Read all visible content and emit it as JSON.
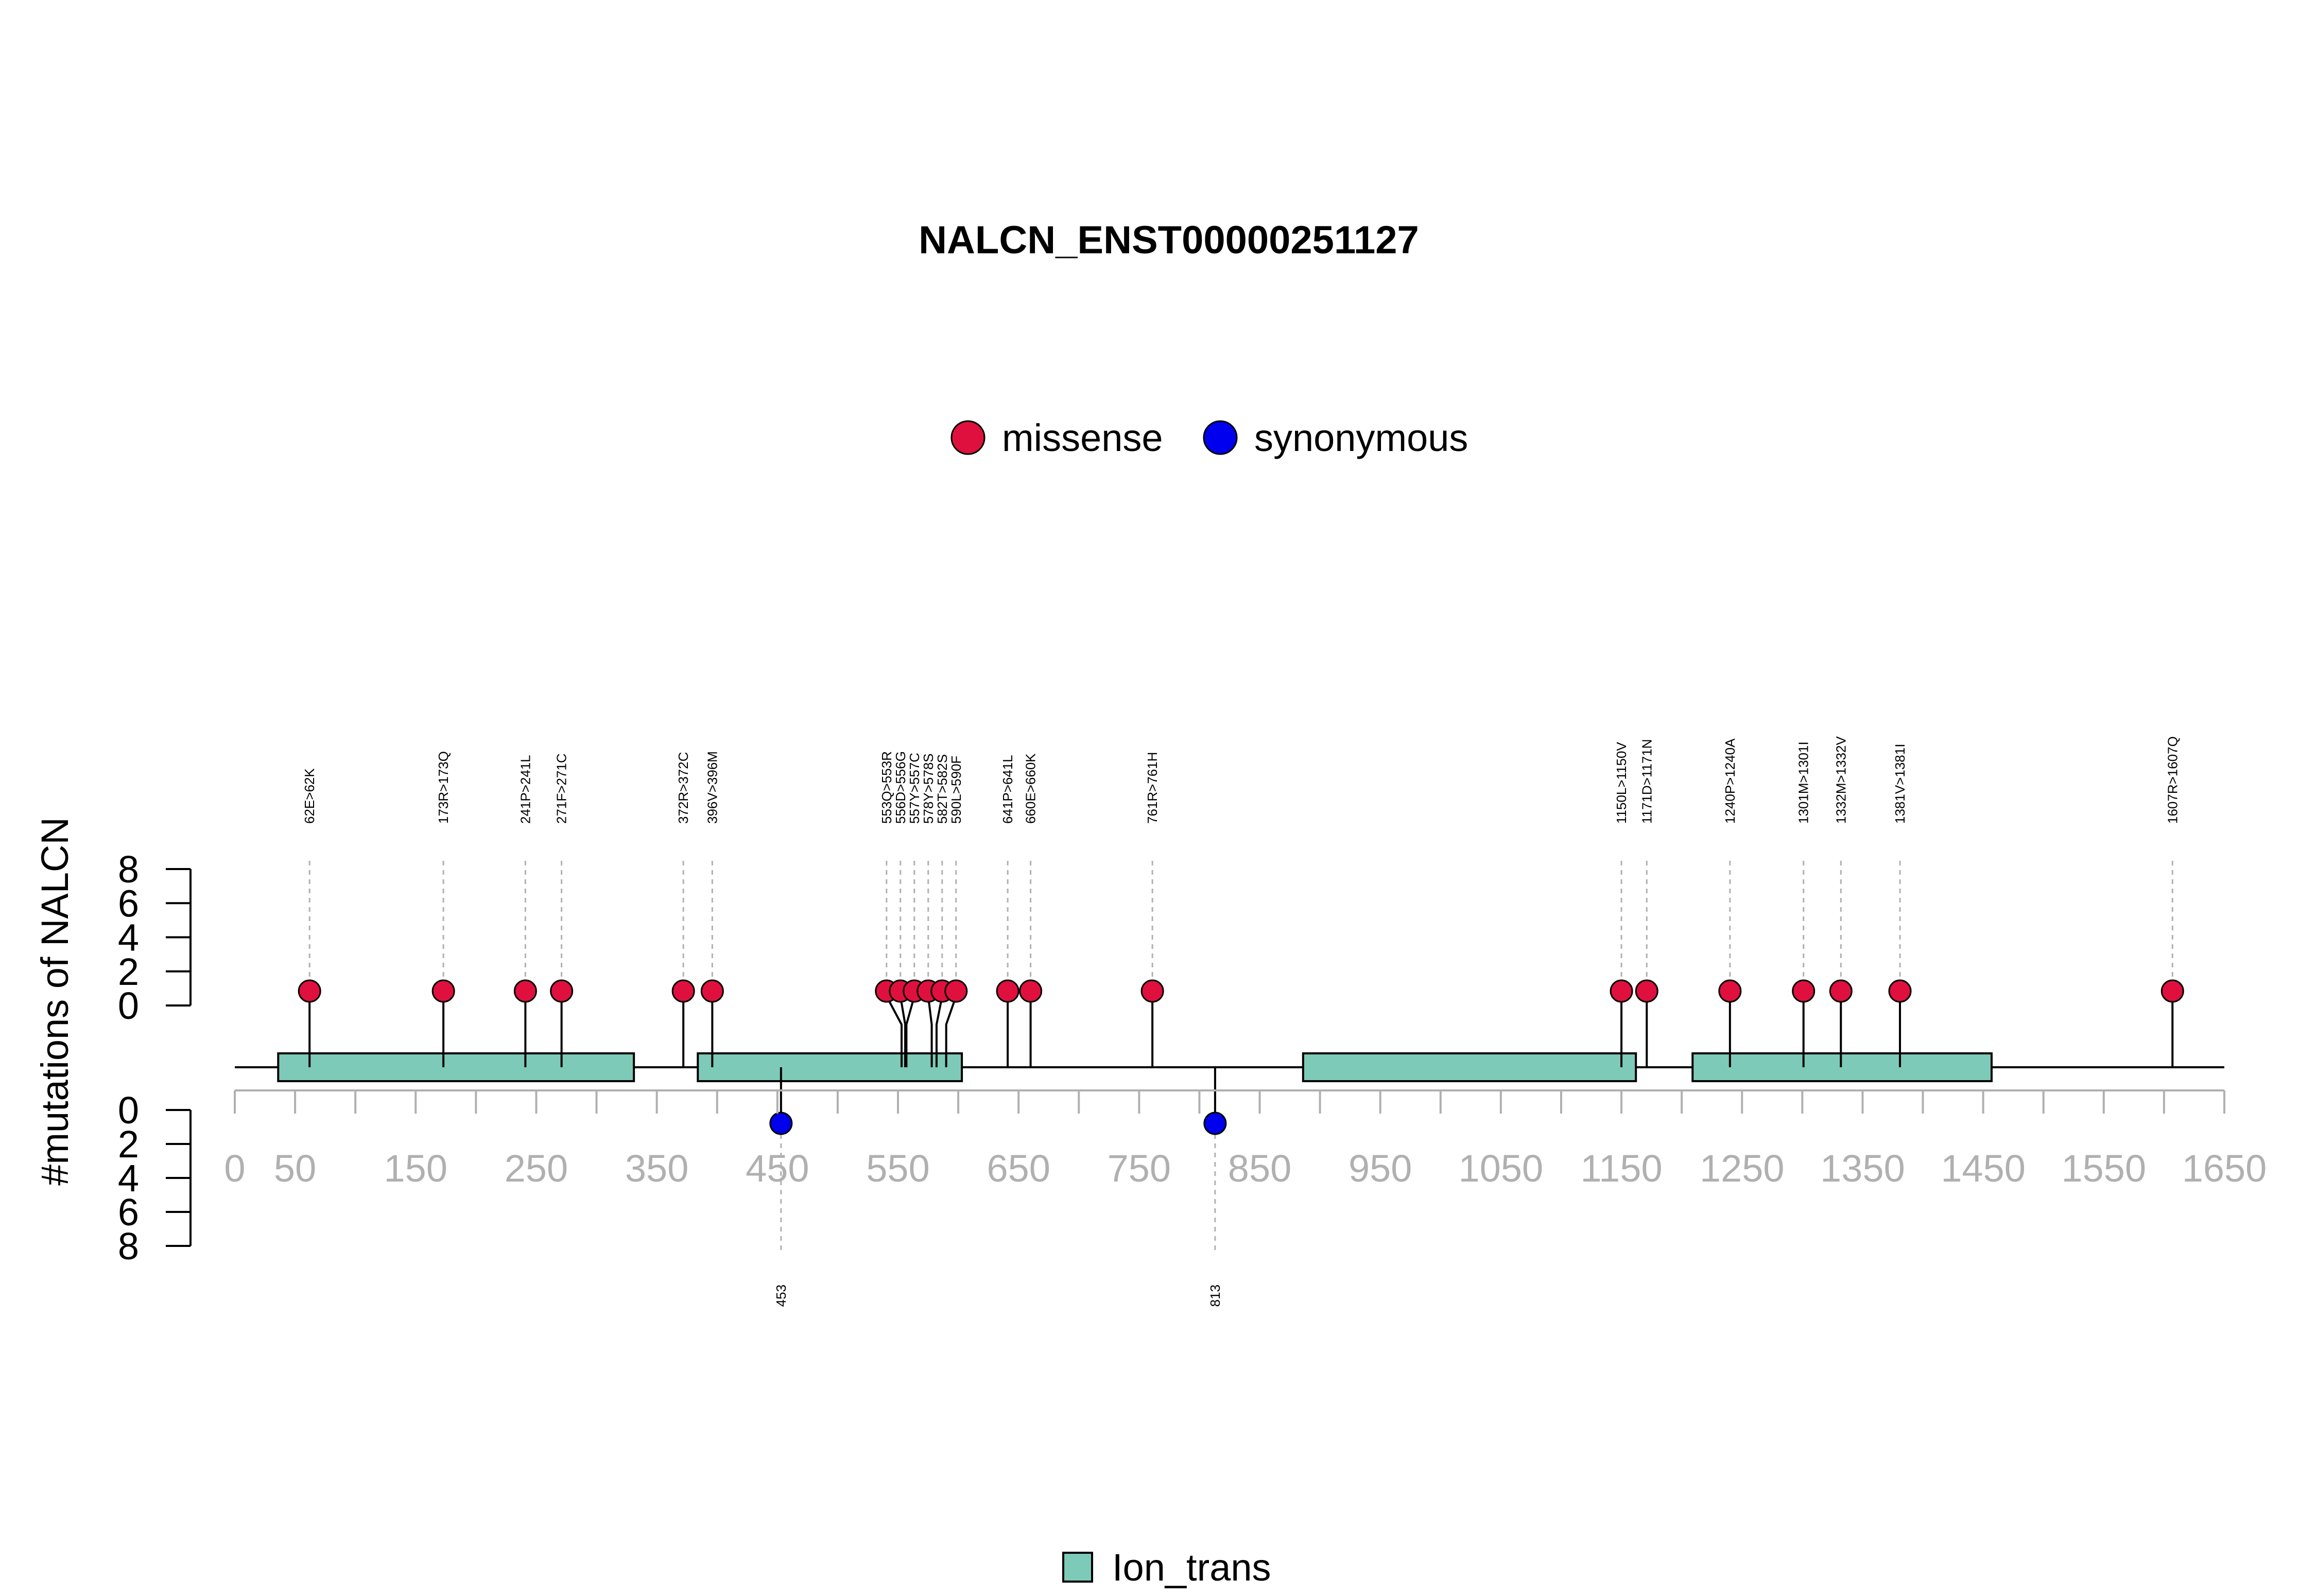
{
  "chart_data": {
    "type": "lollipop",
    "title": "NALCN_ENST00000251127",
    "ylabel": "#mutations of NALCN",
    "xlim": [
      0,
      1650
    ],
    "x_ticks": [
      0,
      50,
      150,
      250,
      350,
      450,
      550,
      650,
      750,
      850,
      950,
      1050,
      1150,
      1250,
      1350,
      1450,
      1550,
      1650
    ],
    "x_minor_step": 50,
    "y_ticks_top": [
      "8",
      "6",
      "4",
      "2",
      "0"
    ],
    "y_ticks_bottom": [
      "0",
      "2",
      "4",
      "6",
      "8"
    ],
    "ylim": [
      0,
      8
    ],
    "colors": {
      "missense": "#e0103e",
      "synonymous": "#0000ee",
      "domain": "#7ecab8",
      "axis_tick": "#b0b0b0",
      "guide": "#b0b0b0"
    },
    "legend": [
      {
        "name": "missense",
        "color": "#e0103e"
      },
      {
        "name": "synonymous",
        "color": "#0000ee"
      }
    ],
    "domain_legend": [
      {
        "name": "Ion_trans",
        "color": "#7ecab8"
      }
    ],
    "domains": [
      {
        "name": "Ion_trans",
        "start": 36,
        "end": 331
      },
      {
        "name": "Ion_trans",
        "start": 384,
        "end": 603
      },
      {
        "name": "Ion_trans",
        "start": 886,
        "end": 1162
      },
      {
        "name": "Ion_trans",
        "start": 1209,
        "end": 1457
      }
    ],
    "mutations_top": [
      {
        "label": "62E>62K",
        "pos": 62,
        "count": 1,
        "type": "missense"
      },
      {
        "label": "173R>173Q",
        "pos": 173,
        "count": 1,
        "type": "missense"
      },
      {
        "label": "241P>241L",
        "pos": 241,
        "count": 1,
        "type": "missense"
      },
      {
        "label": "271F>271C",
        "pos": 271,
        "count": 1,
        "type": "missense"
      },
      {
        "label": "372R>372C",
        "pos": 372,
        "count": 1,
        "type": "missense"
      },
      {
        "label": "396V>396M",
        "pos": 396,
        "count": 1,
        "type": "missense"
      },
      {
        "label": "553Q>553R",
        "pos": 553,
        "count": 1,
        "type": "missense"
      },
      {
        "label": "556D>556G",
        "pos": 556,
        "count": 1,
        "type": "missense"
      },
      {
        "label": "557Y>557C",
        "pos": 557,
        "count": 1,
        "type": "missense"
      },
      {
        "label": "578Y>578S",
        "pos": 578,
        "count": 1,
        "type": "missense"
      },
      {
        "label": "582T>582S",
        "pos": 582,
        "count": 1,
        "type": "missense"
      },
      {
        "label": "590L>590F",
        "pos": 590,
        "count": 1,
        "type": "missense"
      },
      {
        "label": "641P>641L",
        "pos": 641,
        "count": 1,
        "type": "missense"
      },
      {
        "label": "660E>660K",
        "pos": 660,
        "count": 1,
        "type": "missense"
      },
      {
        "label": "761R>761H",
        "pos": 761,
        "count": 1,
        "type": "missense"
      },
      {
        "label": "1150L>1150V",
        "pos": 1150,
        "count": 1,
        "type": "missense"
      },
      {
        "label": "1171D>1171N",
        "pos": 1171,
        "count": 1,
        "type": "missense"
      },
      {
        "label": "1240P>1240A",
        "pos": 1240,
        "count": 1,
        "type": "missense"
      },
      {
        "label": "1301M>1301I",
        "pos": 1301,
        "count": 1,
        "type": "missense"
      },
      {
        "label": "1332M>1332V",
        "pos": 1332,
        "count": 1,
        "type": "missense"
      },
      {
        "label": "1381V>1381I",
        "pos": 1381,
        "count": 1,
        "type": "missense"
      },
      {
        "label": "1607R>1607Q",
        "pos": 1607,
        "count": 1,
        "type": "missense"
      }
    ],
    "mutations_bottom": [
      {
        "label": "453",
        "pos": 453,
        "count": 1,
        "type": "synonymous"
      },
      {
        "label": "813",
        "pos": 813,
        "count": 1,
        "type": "synonymous"
      }
    ]
  }
}
